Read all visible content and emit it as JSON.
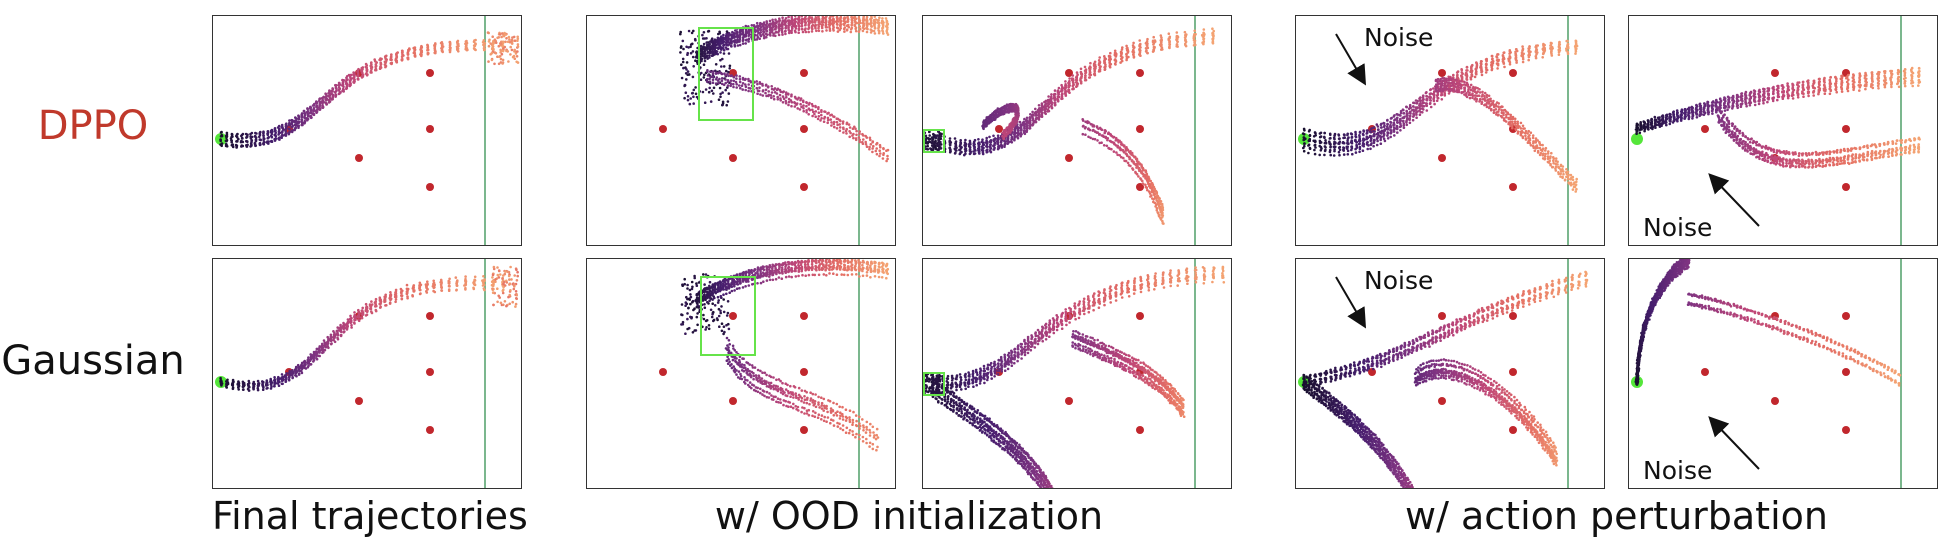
{
  "rows": [
    {
      "label": "DPPO",
      "color": "#c0392b"
    },
    {
      "label": "Gaussian",
      "color": "#111111"
    }
  ],
  "columns": [
    {
      "label": "Final trajectories"
    },
    {
      "label": "w/ OOD initialization"
    },
    {
      "label": "w/ action perturbation"
    }
  ],
  "noise_label": "Noise",
  "colors": {
    "obstacle": "#c1272d",
    "goal_line": "#5aa571",
    "start_marker": "#55e63a",
    "ood_box": "#66e34a",
    "trajectory_start": "#1a1030",
    "trajectory_end": "#f4a372"
  }
}
